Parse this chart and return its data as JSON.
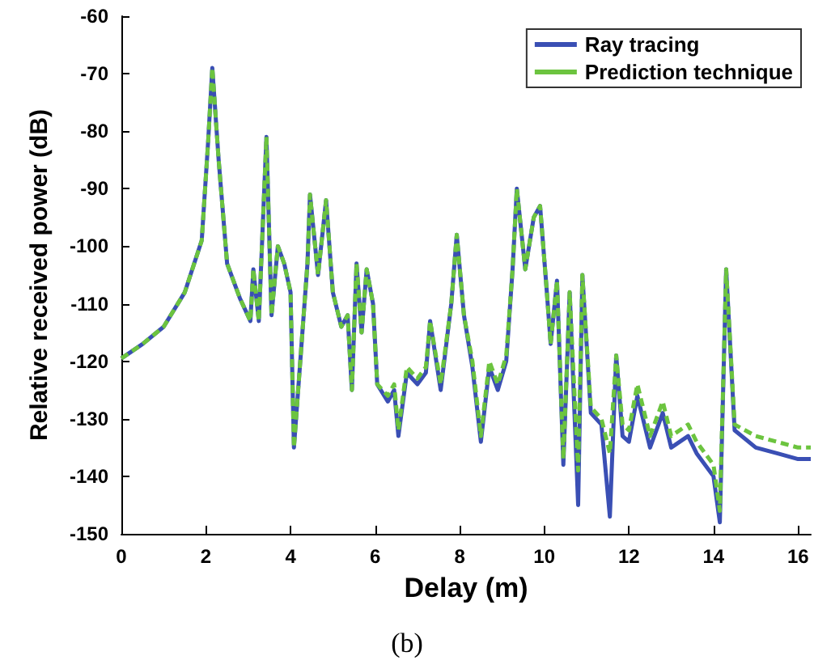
{
  "chart_data": {
    "type": "line",
    "xlabel": "Delay (m)",
    "ylabel": "Relative received power (dB)",
    "annotations": [
      "(b)"
    ],
    "x": [
      0,
      0.5,
      1.0,
      1.5,
      1.9,
      2.05,
      2.15,
      2.3,
      2.5,
      2.8,
      3.05,
      3.12,
      3.25,
      3.43,
      3.55,
      3.7,
      3.85,
      4.0,
      4.08,
      4.25,
      4.4,
      4.46,
      4.65,
      4.84,
      5.0,
      5.2,
      5.35,
      5.45,
      5.56,
      5.68,
      5.8,
      5.95,
      6.05,
      6.3,
      6.45,
      6.55,
      6.75,
      7.0,
      7.2,
      7.3,
      7.55,
      7.8,
      7.93,
      8.1,
      8.3,
      8.5,
      8.7,
      8.9,
      9.1,
      9.25,
      9.35,
      9.55,
      9.75,
      9.9,
      10.05,
      10.15,
      10.3,
      10.45,
      10.6,
      10.8,
      10.9,
      11.1,
      11.35,
      11.55,
      11.7,
      11.85,
      12.0,
      12.2,
      12.5,
      12.8,
      13.0,
      13.4,
      13.6,
      14.0,
      14.15,
      14.3,
      14.5,
      15.0,
      15.5,
      16.0,
      16.3
    ],
    "series": [
      {
        "name": "Ray tracing",
        "color": "#3a4fb4",
        "line_style": "solid",
        "values": [
          -119.5,
          -117,
          -114,
          -108,
          -99,
          -82,
          -69,
          -85,
          -103,
          -109,
          -113,
          -104,
          -113,
          -81,
          -112,
          -100,
          -103,
          -108,
          -135,
          -118,
          -103,
          -91,
          -105,
          -92,
          -108,
          -114,
          -112,
          -125,
          -103,
          -115,
          -104,
          -110,
          -124,
          -127,
          -125,
          -133,
          -122,
          -124,
          -122,
          -113,
          -125,
          -110,
          -98,
          -112,
          -121,
          -134,
          -121,
          -125,
          -120,
          -104,
          -90,
          -104,
          -95,
          -93,
          -107,
          -117,
          -106,
          -138,
          -108,
          -145,
          -105,
          -129,
          -131,
          -147,
          -119,
          -133,
          -134,
          -126,
          -135,
          -129,
          -135,
          -133,
          -136,
          -140,
          -148,
          -104,
          -132,
          -135,
          -136,
          -137,
          -137
        ]
      },
      {
        "name": "Prediction technique",
        "color": "#6cc43f",
        "line_style": "dashed",
        "values": [
          -119.5,
          -117,
          -114,
          -108,
          -99,
          -82,
          -69,
          -85,
          -103,
          -109,
          -113,
          -104,
          -113,
          -81,
          -112,
          -100,
          -103,
          -108,
          -135,
          -118,
          -103,
          -91,
          -105,
          -92,
          -108,
          -114,
          -112,
          -125,
          -103,
          -115,
          -104,
          -110,
          -124,
          -126,
          -124,
          -132,
          -121,
          -123,
          -121,
          -113,
          -124,
          -110,
          -98,
          -112,
          -120,
          -133,
          -120,
          -124,
          -119,
          -104,
          -90,
          -104,
          -95,
          -93,
          -107,
          -117,
          -106,
          -137,
          -108,
          -139,
          -105,
          -128,
          -130,
          -136,
          -119,
          -131,
          -132,
          -124,
          -133,
          -127,
          -133,
          -131,
          -134,
          -138,
          -146,
          -104,
          -131,
          -133,
          -134,
          -135,
          -135
        ]
      }
    ],
    "xlim": [
      0,
      16.3
    ],
    "xticks": [
      0,
      2,
      4,
      6,
      8,
      10,
      12,
      14,
      16
    ],
    "ylim": [
      -150,
      -60
    ],
    "yticks": [
      -150,
      -140,
      -130,
      -120,
      -110,
      -100,
      -90,
      -80,
      -70,
      -60
    ],
    "grid": false,
    "legend": "top right",
    "marker": "none"
  }
}
